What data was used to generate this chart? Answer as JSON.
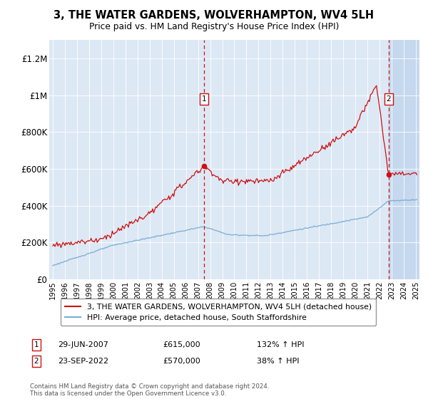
{
  "title": "3, THE WATER GARDENS, WOLVERHAMPTON, WV4 5LH",
  "subtitle": "Price paid vs. HM Land Registry's House Price Index (HPI)",
  "legend_line1": "3, THE WATER GARDENS, WOLVERHAMPTON, WV4 5LH (detached house)",
  "legend_line2": "HPI: Average price, detached house, South Staffordshire",
  "annotation1_label": "1",
  "annotation1_date": "29-JUN-2007",
  "annotation1_price": "£615,000",
  "annotation1_hpi": "132% ↑ HPI",
  "annotation2_label": "2",
  "annotation2_date": "23-SEP-2022",
  "annotation2_price": "£570,000",
  "annotation2_hpi": "38% ↑ HPI",
  "vline1_x": 2007.5,
  "vline2_x": 2022.75,
  "dot1_x": 2007.5,
  "dot1_y": 615000,
  "dot2_x": 2022.75,
  "dot2_y": 570000,
  "ylim": [
    0,
    1300000
  ],
  "xlim_start": 1994.7,
  "xlim_end": 2025.3,
  "bg_color": "#dde8f5",
  "hatch_color": "#c5d8ee",
  "red_color": "#cc1111",
  "blue_color": "#7aadd4",
  "footer": "Contains HM Land Registry data © Crown copyright and database right 2024.\nThis data is licensed under the Open Government Licence v3.0.",
  "yticks": [
    0,
    200000,
    400000,
    600000,
    800000,
    1000000,
    1200000
  ],
  "ytick_labels": [
    "£0",
    "£200K",
    "£400K",
    "£600K",
    "£800K",
    "£1M",
    "£1.2M"
  ]
}
